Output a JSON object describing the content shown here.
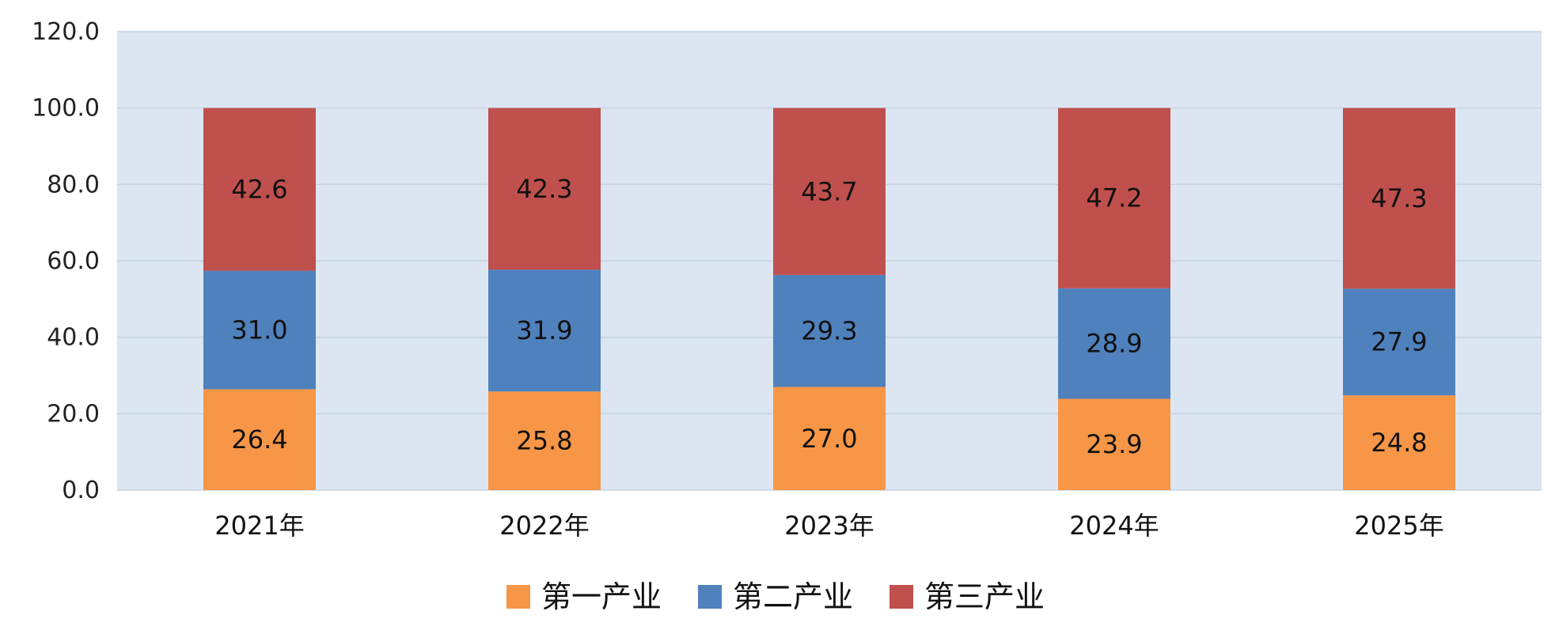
{
  "chart_data": {
    "type": "bar",
    "stacked": true,
    "categories": [
      "2021年",
      "2022年",
      "2023年",
      "2024年",
      "2025年"
    ],
    "series": [
      {
        "name": "第一产业",
        "color": "#F79646",
        "values": [
          26.4,
          25.8,
          27.0,
          23.9,
          24.8
        ]
      },
      {
        "name": "第二产业",
        "color": "#4F81BD",
        "values": [
          31.0,
          31.9,
          29.3,
          28.9,
          27.9
        ]
      },
      {
        "name": "第三产业",
        "color": "#C0504D",
        "values": [
          42.6,
          42.3,
          43.7,
          47.2,
          47.3
        ]
      }
    ],
    "ylim": [
      0,
      120
    ],
    "yticks": [
      "0.0",
      "20.0",
      "40.0",
      "60.0",
      "80.0",
      "100.0",
      "120.0"
    ],
    "grid": true,
    "plot_background": "#DCE6F2",
    "legend_position": "bottom"
  }
}
